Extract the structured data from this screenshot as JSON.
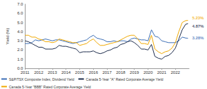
{
  "chart_data": {
    "type": "line",
    "y_label": "Yield (%)",
    "x": [
      2011,
      2011.25,
      2011.5,
      2011.75,
      2012,
      2012.25,
      2012.5,
      2012.75,
      2013,
      2013.25,
      2013.5,
      2013.75,
      2014,
      2014.25,
      2014.5,
      2014.75,
      2015,
      2015.25,
      2015.5,
      2015.75,
      2016,
      2016.25,
      2016.5,
      2016.75,
      2017,
      2017.25,
      2017.5,
      2017.75,
      2018,
      2018.25,
      2018.5,
      2018.75,
      2019,
      2019.25,
      2019.5,
      2019.75,
      2020,
      2020.25,
      2020.5,
      2020.75,
      2021,
      2021.25,
      2021.5,
      2021.75,
      2022,
      2022.25,
      2022.5,
      2022.75,
      2022.92
    ],
    "series": [
      {
        "name": "S&P/TSX Composite Index, Dividend Yield",
        "color": "#3a6db5",
        "values": [
          2.7,
          2.7,
          2.8,
          3.1,
          3.0,
          3.1,
          3.2,
          3.1,
          3.0,
          3.1,
          3.1,
          3.0,
          2.9,
          2.8,
          2.7,
          2.8,
          2.9,
          3.0,
          3.1,
          3.4,
          3.6,
          3.3,
          3.2,
          3.1,
          2.9,
          2.9,
          3.0,
          2.9,
          3.0,
          3.0,
          2.9,
          3.2,
          3.3,
          3.2,
          3.1,
          3.1,
          3.0,
          4.2,
          3.5,
          3.4,
          3.0,
          2.9,
          2.8,
          2.8,
          2.8,
          3.0,
          3.4,
          3.3,
          3.28
        ]
      },
      {
        "name": "Canada 5-Year \"A\" Rated Corporate Average Yield",
        "color": "#1b2a4a",
        "values": [
          3.0,
          2.9,
          2.7,
          2.5,
          2.3,
          2.3,
          2.1,
          2.1,
          2.1,
          2.2,
          2.5,
          2.4,
          2.4,
          2.3,
          2.2,
          2.1,
          1.7,
          1.8,
          1.8,
          1.8,
          1.9,
          1.7,
          1.6,
          1.7,
          1.9,
          2.0,
          2.2,
          2.3,
          2.6,
          2.7,
          2.9,
          3.0,
          2.8,
          2.5,
          2.1,
          2.1,
          2.0,
          2.6,
          1.3,
          1.1,
          1.0,
          1.3,
          1.4,
          1.7,
          2.2,
          3.2,
          4.2,
          4.8,
          4.87
        ]
      },
      {
        "name": "Canada 5-Year \"BBB\" Rated Corporate Average Yield",
        "color": "#f0a800",
        "values": [
          3.6,
          3.6,
          3.4,
          3.4,
          3.2,
          3.1,
          2.9,
          2.9,
          2.8,
          2.9,
          3.2,
          3.1,
          3.0,
          2.9,
          2.8,
          2.8,
          2.5,
          2.6,
          2.7,
          3.0,
          3.2,
          2.8,
          2.5,
          2.5,
          2.6,
          2.7,
          2.8,
          2.9,
          3.1,
          3.3,
          3.5,
          3.6,
          3.6,
          3.2,
          2.7,
          2.7,
          2.6,
          3.6,
          2.1,
          1.8,
          1.6,
          1.8,
          1.9,
          2.2,
          2.8,
          4.0,
          5.0,
          5.2,
          5.23
        ]
      }
    ],
    "annotations": [
      {
        "text": "5.23%",
        "x": 2022.92,
        "y": 5.23,
        "series": "Canada 5-Year \"BBB\" Rated Corporate Average Yield"
      },
      {
        "text": "4.87%",
        "x": 2022.92,
        "y": 4.87,
        "series": "Canada 5-Year \"A\" Rated Corporate Average Yield"
      },
      {
        "text": "3.28%",
        "x": 2022.92,
        "y": 3.28,
        "series": "S&P/TSX Composite Index, Dividend Yield"
      }
    ],
    "xlim": [
      2011,
      2023
    ],
    "xticks": [
      2011,
      2012,
      2013,
      2014,
      2015,
      2016,
      2017,
      2018,
      2019,
      2020,
      2021,
      2022
    ],
    "ylim": [
      0,
      7
    ],
    "yticks": [
      {
        "value": 0,
        "label": "0.0"
      },
      {
        "value": 1,
        "label": "1.0"
      },
      {
        "value": 2,
        "label": "2.0"
      },
      {
        "value": 3,
        "label": "3.0"
      },
      {
        "value": 4,
        "label": "4.0"
      },
      {
        "value": 5,
        "label": "5.0"
      },
      {
        "value": 6,
        "label": "6.0"
      },
      {
        "value": 7,
        "label": "7.0"
      }
    ],
    "grid": false,
    "legend": "bottom",
    "marker": "none",
    "line_style": "solid"
  }
}
